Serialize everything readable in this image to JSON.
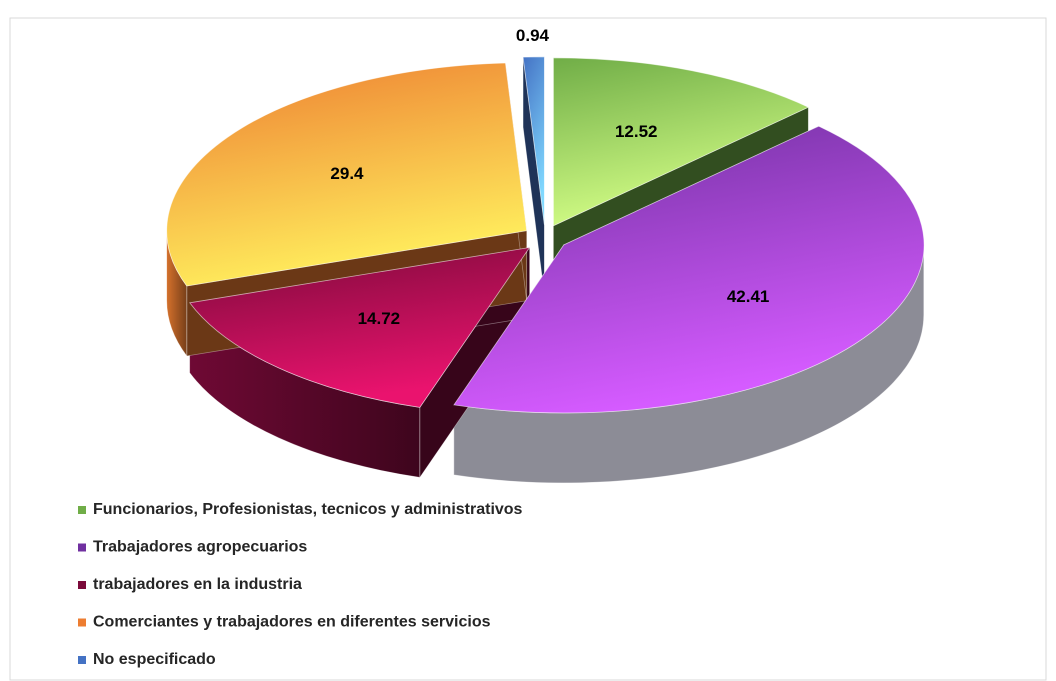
{
  "chart_data": {
    "type": "pie",
    "categories": [
      "Funcionarios, Profesionistas, tecnicos y administrativos",
      "Trabajadores agropecuarios",
      "trabajadores en la industria",
      "Comerciantes y trabajadores en diferentes servicios",
      "No especificado"
    ],
    "values": [
      12.52,
      42.41,
      14.72,
      29.4,
      0.94
    ],
    "colors": [
      "#70ad47",
      "#7030a0",
      "#7b0a3a",
      "#ed7d31",
      "#4472c4"
    ],
    "legend": "bottom"
  }
}
